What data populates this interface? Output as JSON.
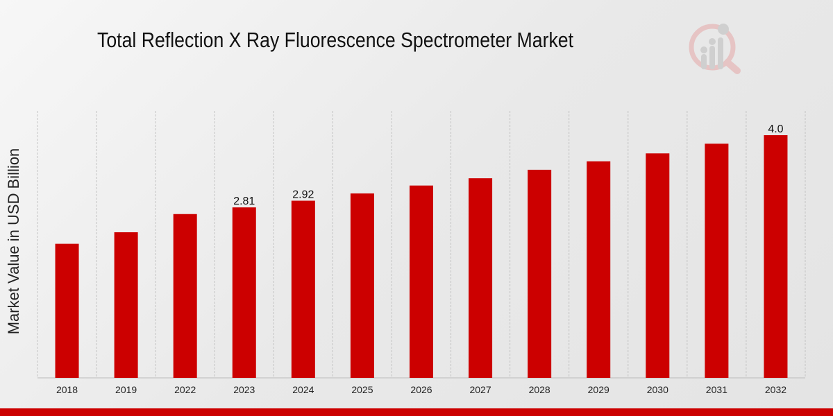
{
  "chart_data": {
    "type": "bar",
    "title": "Total Reflection X Ray Fluorescence Spectrometer Market",
    "xlabel": "",
    "ylabel": "Market Value in USD Billion",
    "categories": [
      "2018",
      "2019",
      "2022",
      "2023",
      "2024",
      "2025",
      "2026",
      "2027",
      "2028",
      "2029",
      "2030",
      "2031",
      "2032"
    ],
    "values": [
      2.21,
      2.4,
      2.7,
      2.81,
      2.92,
      3.04,
      3.17,
      3.29,
      3.43,
      3.57,
      3.7,
      3.86,
      4.0
    ],
    "data_labels": {
      "2023": "2.81",
      "2024": "2.92",
      "2032": "4.0"
    },
    "ylim": [
      0,
      4.4
    ],
    "grid": "vertical dashed",
    "bar_color": "#cc0000"
  }
}
